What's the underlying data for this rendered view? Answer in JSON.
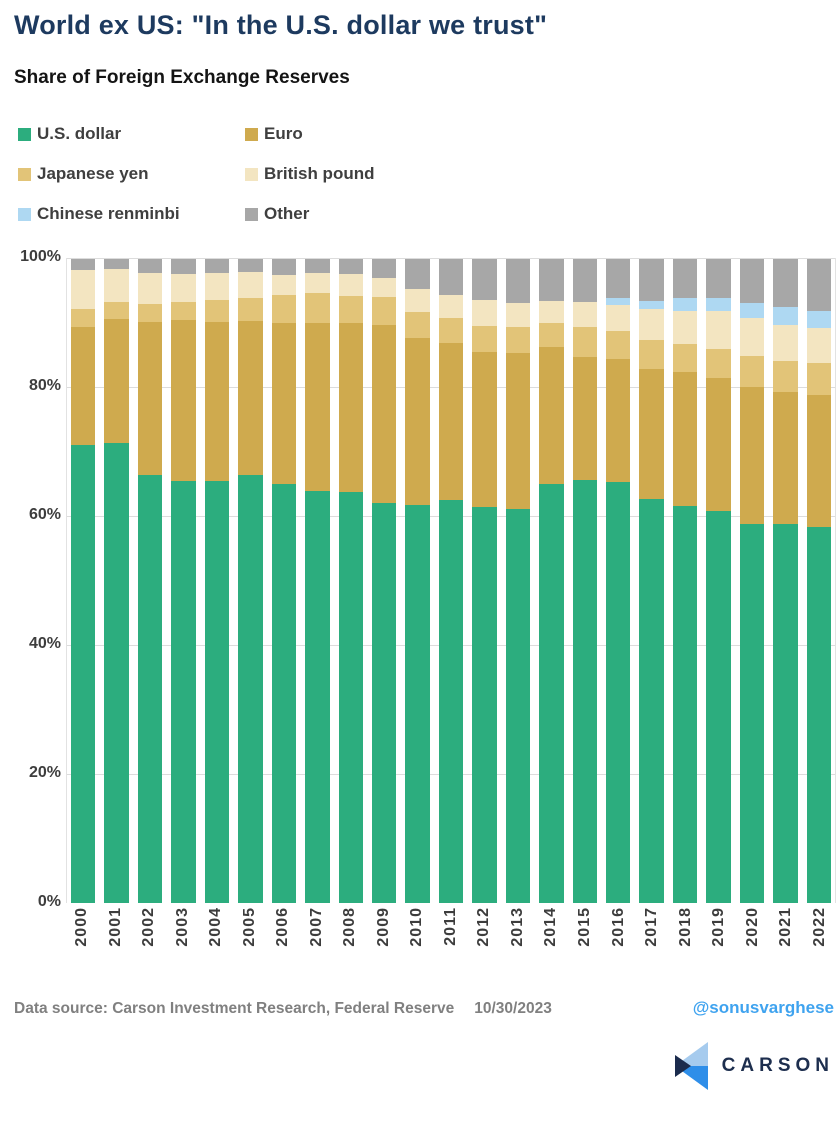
{
  "title": "World ex US: \"In the U.S. dollar we trust\"",
  "subtitle": "Share of Foreign Exchange Reserves",
  "chart_data": {
    "type": "bar",
    "stacked": true,
    "percent": true,
    "title": "Share of Foreign Exchange Reserves",
    "xlabel": "",
    "ylabel": "",
    "ylim": [
      0,
      100
    ],
    "grid": true,
    "legend_position": "top-left",
    "yticks": [
      "0%",
      "20%",
      "40%",
      "60%",
      "80%",
      "100%"
    ],
    "categories": [
      "2000",
      "2001",
      "2002",
      "2003",
      "2004",
      "2005",
      "2006",
      "2007",
      "2008",
      "2009",
      "2010",
      "2011",
      "2012",
      "2013",
      "2014",
      "2015",
      "2016",
      "2017",
      "2018",
      "2019",
      "2020",
      "2021",
      "2022"
    ],
    "series": [
      {
        "name": "U.S. dollar",
        "color": "#2cad7e",
        "values": [
          71.1,
          71.5,
          66.5,
          65.5,
          65.5,
          66.5,
          65.0,
          63.9,
          63.8,
          62.1,
          61.8,
          62.6,
          61.5,
          61.2,
          65.1,
          65.7,
          65.4,
          62.7,
          61.7,
          60.9,
          58.9,
          58.8,
          58.4
        ]
      },
      {
        "name": "Euro",
        "color": "#cfaa4e",
        "values": [
          18.3,
          19.2,
          23.7,
          25.0,
          24.7,
          23.9,
          25.0,
          26.1,
          26.2,
          27.7,
          26.0,
          24.4,
          24.1,
          24.2,
          21.2,
          19.1,
          19.1,
          20.2,
          20.7,
          20.6,
          21.3,
          20.6,
          20.5
        ]
      },
      {
        "name": "Japanese yen",
        "color": "#e2c478",
        "values": [
          2.8,
          2.7,
          2.8,
          2.8,
          3.4,
          3.6,
          4.4,
          4.7,
          4.2,
          4.3,
          3.9,
          3.8,
          4.0,
          4.0,
          3.7,
          4.7,
          4.3,
          4.5,
          4.4,
          4.6,
          4.7,
          4.8,
          4.9
        ]
      },
      {
        "name": "British pound",
        "color": "#f3e5c1",
        "values": [
          6.1,
          5.0,
          4.9,
          4.4,
          4.3,
          4.0,
          3.1,
          3.2,
          3.5,
          2.9,
          3.7,
          3.6,
          4.1,
          3.8,
          3.5,
          3.8,
          4.0,
          4.9,
          5.2,
          5.9,
          6.0,
          5.5,
          5.5
        ]
      },
      {
        "name": "Chinese renminbi",
        "color": "#aed8f2",
        "values": [
          0,
          0,
          0,
          0,
          0,
          0,
          0,
          0,
          0,
          0,
          0,
          0,
          0,
          0,
          0,
          0,
          1.1,
          1.2,
          1.9,
          1.9,
          2.3,
          2.8,
          2.7
        ]
      },
      {
        "name": "Other",
        "color": "#a7a7a7",
        "values": [
          1.7,
          1.6,
          2.1,
          2.3,
          2.1,
          2.0,
          2.5,
          2.1,
          2.3,
          3.0,
          4.6,
          5.6,
          6.3,
          6.8,
          6.5,
          6.7,
          6.1,
          6.5,
          6.1,
          6.1,
          6.8,
          7.5,
          8.0
        ]
      }
    ]
  },
  "footer": {
    "source": "Data source: Carson Investment Research, Federal Reserve",
    "date": "10/30/2023",
    "handle": "@sonusvarghese"
  },
  "logo": {
    "text": "CARSON",
    "mark_colors": {
      "top": "#a6cbee",
      "bottom": "#2e8ee9",
      "notch": "#1b2b4d"
    }
  },
  "colors": {
    "title": "#1d3a5f",
    "handle": "#3fa3ef",
    "gridline": "#dcdcdc",
    "axis_text": "#3d3d3d"
  }
}
